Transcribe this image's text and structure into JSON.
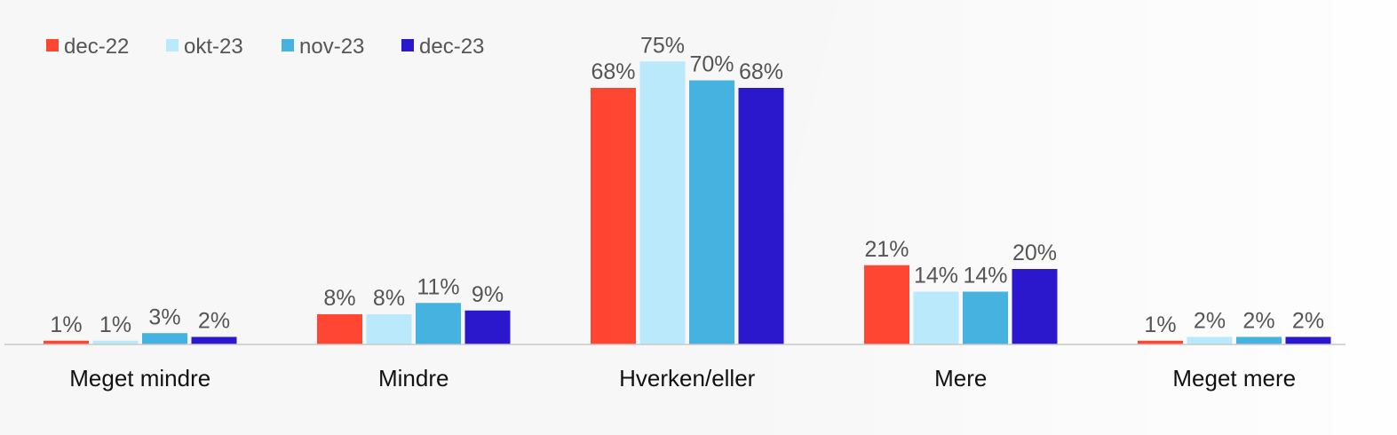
{
  "chart_data": {
    "type": "bar",
    "title": "",
    "xlabel": "",
    "ylabel": "",
    "ylim": [
      0,
      80
    ],
    "grid": false,
    "legend_position": "top-left",
    "value_suffix": "%",
    "categories": [
      "Meget mindre",
      "Mindre",
      "Hverken/eller",
      "Mere",
      "Meget mere"
    ],
    "series": [
      {
        "name": "dec-22",
        "color": "#ff4632",
        "values": [
          1,
          8,
          68,
          21,
          1
        ]
      },
      {
        "name": "okt-23",
        "color": "#b9e9fb",
        "values": [
          1,
          8,
          75,
          14,
          2
        ]
      },
      {
        "name": "nov-23",
        "color": "#46b2df",
        "values": [
          3,
          11,
          70,
          14,
          2
        ]
      },
      {
        "name": "dec-23",
        "color": "#2b18cc",
        "values": [
          2,
          9,
          68,
          20,
          2
        ]
      }
    ]
  },
  "colors": {
    "background": "#f7f7f8",
    "baseline": "#c8c8c8",
    "label_text": "#555555",
    "category_text": "#111111"
  }
}
